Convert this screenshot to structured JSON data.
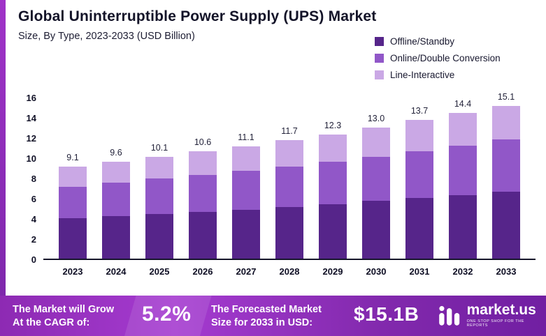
{
  "header": {
    "title": "Global Uninterruptible Power Supply (UPS) Market",
    "subtitle": "Size, By Type, 2023-2033 (USD Billion)"
  },
  "chart_data": {
    "type": "bar",
    "stacked": true,
    "title": "Global Uninterruptible Power Supply (UPS) Market Size, By Type, 2023-2033 (USD Billion)",
    "categories": [
      "2023",
      "2024",
      "2025",
      "2026",
      "2027",
      "2028",
      "2029",
      "2030",
      "2031",
      "2032",
      "2033"
    ],
    "series": [
      {
        "name": "Offline/Standby",
        "color": "#56258a",
        "values": [
          4.0,
          4.2,
          4.4,
          4.6,
          4.8,
          5.1,
          5.4,
          5.7,
          6.0,
          6.3,
          6.6
        ]
      },
      {
        "name": "Online/Double Conversion",
        "color": "#9157c8",
        "values": [
          3.1,
          3.3,
          3.5,
          3.7,
          3.9,
          4.0,
          4.2,
          4.4,
          4.6,
          4.9,
          5.2
        ]
      },
      {
        "name": "Line-Interactive",
        "color": "#caa8e5",
        "values": [
          2.0,
          2.1,
          2.2,
          2.3,
          2.4,
          2.6,
          2.7,
          2.9,
          3.1,
          3.2,
          3.3
        ]
      }
    ],
    "totals": [
      9.1,
      9.6,
      10.1,
      10.6,
      11.1,
      11.7,
      12.3,
      13.0,
      13.7,
      14.4,
      15.1
    ],
    "xlabel": "",
    "ylabel": "",
    "ylim": [
      0,
      16
    ],
    "yticks": [
      0,
      2,
      4,
      6,
      8,
      10,
      12,
      14,
      16
    ],
    "grid": false,
    "legend_position": "top-right"
  },
  "banner": {
    "cagr_label": "The Market will Grow\nAt the CAGR of:",
    "cagr_value": "5.2%",
    "forecast_label": "The Forecasted Market\nSize for 2033 in USD:",
    "forecast_value": "$15.1B",
    "brand": "market.us",
    "brand_tagline": "ONE STOP SHOP FOR THE REPORTS"
  }
}
